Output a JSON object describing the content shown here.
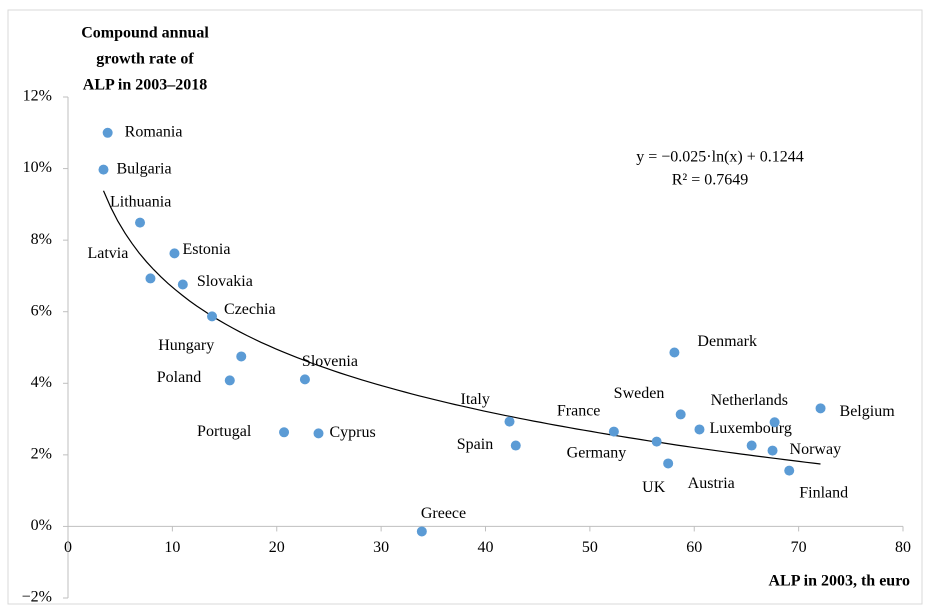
{
  "chart_data": {
    "type": "scatter",
    "ylabel": [
      "Compound  annual",
      "growth  rate of",
      "ALP  in 2003–2018"
    ],
    "xlabel": "ALP  in 2003, th euro",
    "color": "#5b9bd5",
    "xlim": [
      0,
      80
    ],
    "ylim": [
      -2,
      12
    ],
    "xticks": [
      0,
      10,
      20,
      30,
      40,
      50,
      60,
      70,
      80
    ],
    "yticks": [
      {
        "value": -2,
        "label": "−2%"
      },
      {
        "value": 0,
        "label": "0%"
      },
      {
        "value": 2,
        "label": "2%"
      },
      {
        "value": 4,
        "label": "4%"
      },
      {
        "value": 6,
        "label": "6%"
      },
      {
        "value": 8,
        "label": "8%"
      },
      {
        "value": 10,
        "label": "10%"
      },
      {
        "value": 12,
        "label": "12%"
      }
    ],
    "labels": [
      "Romania",
      "Bulgaria",
      "Lithuania",
      "Estonia",
      "Latvia",
      "Slovakia",
      "Czechia",
      "Hungary",
      "Poland",
      "Slovenia",
      "Portugal",
      "Cyprus",
      "Greece",
      "Italy",
      "Spain",
      "France",
      "Germany",
      "UK",
      "Denmark",
      "Sweden",
      "Luxembourg",
      "Austria",
      "Netherlands",
      "Norway",
      "Belgium",
      "Finland"
    ],
    "x": [
      3.8,
      3.4,
      6.9,
      10.2,
      7.9,
      11.0,
      13.8,
      16.6,
      15.5,
      22.7,
      20.7,
      24.0,
      33.9,
      42.3,
      42.9,
      52.3,
      56.4,
      57.5,
      58.1,
      58.7,
      60.5,
      65.5,
      67.7,
      67.5,
      72.1,
      69.1
    ],
    "values": [
      11.0,
      9.97,
      8.49,
      7.63,
      6.93,
      6.76,
      5.87,
      4.75,
      4.08,
      4.11,
      2.63,
      2.6,
      -0.14,
      2.93,
      2.26,
      2.65,
      2.37,
      1.76,
      4.86,
      3.13,
      2.71,
      2.26,
      2.91,
      2.12,
      3.3,
      1.56
    ],
    "trendline": {
      "type": "log",
      "coef": -2.5,
      "intercept": 12.44,
      "equation": "y = −0.025·ln(x)  + 0.1244",
      "r2": "R² = 0.7649"
    }
  }
}
